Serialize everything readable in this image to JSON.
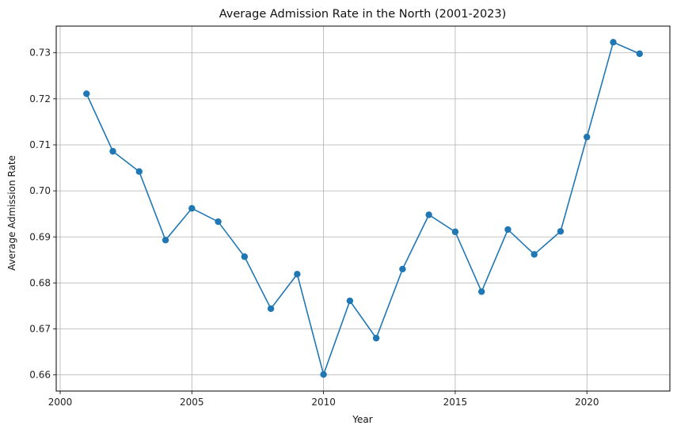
{
  "chart_data": {
    "type": "line",
    "title": "Average Admission Rate in the North (2001-2023)",
    "xlabel": "Year",
    "ylabel": "Average Admission Rate",
    "xlim": [
      1999.85,
      2023.15
    ],
    "ylim": [
      0.6565,
      0.7358
    ],
    "xticks": [
      2000,
      2005,
      2010,
      2015,
      2020
    ],
    "yticks": [
      0.66,
      0.67,
      0.68,
      0.69,
      0.7,
      0.71,
      0.72,
      0.73
    ],
    "ytick_labels": [
      "0.66",
      "0.67",
      "0.68",
      "0.69",
      "0.70",
      "0.71",
      "0.72",
      "0.73"
    ],
    "grid": true,
    "series": [
      {
        "color": "#1f77b4",
        "marker": "circle",
        "x": [
          2001,
          2002,
          2003,
          2004,
          2005,
          2006,
          2007,
          2008,
          2009,
          2010,
          2011,
          2012,
          2013,
          2014,
          2015,
          2016,
          2017,
          2018,
          2019,
          2020,
          2021,
          2022
        ],
        "y": [
          0.7211,
          0.7086,
          0.7042,
          0.6893,
          0.6962,
          0.6933,
          0.6857,
          0.6744,
          0.6819,
          0.6601,
          0.6761,
          0.668,
          0.683,
          0.6948,
          0.6911,
          0.6781,
          0.6916,
          0.6862,
          0.6912,
          0.7117,
          0.7323,
          0.7298
        ]
      }
    ]
  }
}
